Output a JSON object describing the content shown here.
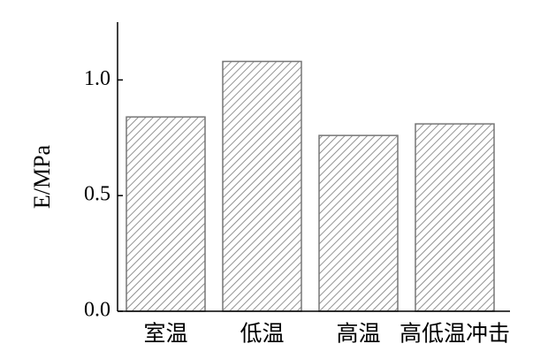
{
  "chart_data": {
    "type": "bar",
    "y_label": "E/MPa",
    "categories": [
      "室温",
      "低温",
      "高温",
      "高低温冲击"
    ],
    "values": [
      0.84,
      1.08,
      0.76,
      0.81
    ],
    "color": "#777777",
    "ylim": [
      0,
      1.25
    ],
    "yticks": [
      {
        "value": 0,
        "label": "0.0"
      },
      {
        "value": 0.5,
        "label": "0.5"
      },
      {
        "value": 1,
        "label": "1.0"
      }
    ],
    "grid": false
  }
}
